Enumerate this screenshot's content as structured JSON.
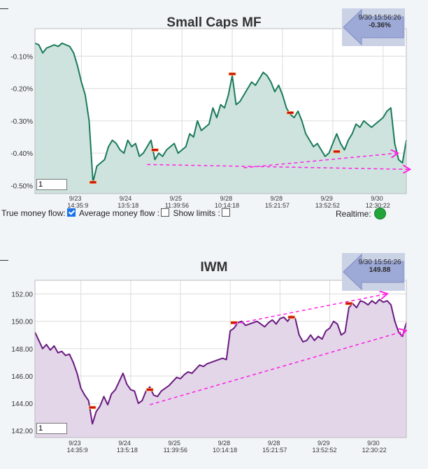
{
  "chart_data": [
    {
      "type": "area",
      "title": "Small Caps MF",
      "ylabel": "",
      "xlabel": "",
      "ylim": [
        -0.525,
        -0.015
      ],
      "yticks": [
        -0.5,
        -0.4,
        -0.3,
        -0.2,
        -0.1
      ],
      "ytick_labels": [
        "-0.50%",
        "-0.40%",
        "-0.30%",
        "-0.20%",
        "-0.10%"
      ],
      "xticks": [
        {
          "i": 12,
          "date": "9/23",
          "time": "14:35:9"
        },
        {
          "i": 25,
          "date": "9/24",
          "time": "13:5:18"
        },
        {
          "i": 38,
          "date": "9/25",
          "time": "11:39:56"
        },
        {
          "i": 51,
          "date": "9/28",
          "time": "10:14:18"
        },
        {
          "i": 64,
          "date": "9/28",
          "time": "15:21:57"
        },
        {
          "i": 77,
          "date": "9/29",
          "time": "13:52:52"
        },
        {
          "i": 90,
          "date": "9/30",
          "time": "12:30:22"
        }
      ],
      "grid": true,
      "fill_color": "#cfe3de",
      "line_color": "#1a7a5a",
      "series": [
        {
          "values": [
            -0.06,
            -0.065,
            -0.09,
            -0.075,
            -0.07,
            -0.065,
            -0.07,
            -0.06,
            -0.065,
            -0.07,
            -0.09,
            -0.13,
            -0.18,
            -0.22,
            -0.3,
            -0.49,
            -0.44,
            -0.43,
            -0.42,
            -0.38,
            -0.36,
            -0.37,
            -0.39,
            -0.4,
            -0.36,
            -0.38,
            -0.37,
            -0.41,
            -0.4,
            -0.38,
            -0.36,
            -0.42,
            -0.4,
            -0.41,
            -0.39,
            -0.38,
            -0.37,
            -0.4,
            -0.39,
            -0.38,
            -0.34,
            -0.35,
            -0.3,
            -0.33,
            -0.32,
            -0.31,
            -0.26,
            -0.29,
            -0.25,
            -0.26,
            -0.22,
            -0.16,
            -0.25,
            -0.24,
            -0.22,
            -0.2,
            -0.18,
            -0.19,
            -0.17,
            -0.15,
            -0.16,
            -0.18,
            -0.21,
            -0.19,
            -0.22,
            -0.26,
            -0.28,
            -0.29,
            -0.27,
            -0.3,
            -0.34,
            -0.36,
            -0.38,
            -0.37,
            -0.39,
            -0.41,
            -0.4,
            -0.37,
            -0.34,
            -0.37,
            -0.39,
            -0.36,
            -0.34,
            -0.31,
            -0.32,
            -0.3,
            -0.31,
            -0.32,
            -0.31,
            -0.3,
            -0.29,
            -0.27,
            -0.26,
            -0.37,
            -0.42,
            -0.43,
            -0.36
          ]
        }
      ],
      "markers": [
        {
          "i": 15,
          "y": -0.49
        },
        {
          "i": 31,
          "y": -0.39
        },
        {
          "i": 51,
          "y": -0.155
        },
        {
          "i": 66,
          "y": -0.275
        },
        {
          "i": 78,
          "y": -0.395
        }
      ],
      "trend_lines": [
        {
          "from": [
            54,
            -0.445
          ],
          "to": [
            93.6,
            -0.4
          ]
        },
        {
          "from": [
            29,
            -0.435
          ],
          "to": [
            96.7,
            -0.45
          ]
        }
      ],
      "tooltip": {
        "datetime": "9/30 15:56:26",
        "value": "-0.36%"
      },
      "range_input": "1"
    },
    {
      "type": "area",
      "title": "IWM",
      "ylabel": "",
      "xlabel": "",
      "ylim": [
        141.5,
        153
      ],
      "yticks": [
        142,
        144,
        146,
        148,
        150,
        152
      ],
      "ytick_labels": [
        "142.00",
        "144.00",
        "146.00",
        "148.00",
        "150.00",
        "152.00"
      ],
      "xticks": [
        {
          "i": 12,
          "date": "9/23",
          "time": "14:35:9"
        },
        {
          "i": 25,
          "date": "9/24",
          "time": "13:5:18"
        },
        {
          "i": 38,
          "date": "9/25",
          "time": "11:39:56"
        },
        {
          "i": 51,
          "date": "9/28",
          "time": "10:14:18"
        },
        {
          "i": 64,
          "date": "9/28",
          "time": "15:21:57"
        },
        {
          "i": 77,
          "date": "9/29",
          "time": "13:52:52"
        },
        {
          "i": 90,
          "date": "9/30",
          "time": "12:30:22"
        }
      ],
      "grid": true,
      "fill_color": "#e2d6e8",
      "line_color": "#6a1a80",
      "series": [
        {
          "values": [
            149.2,
            148.6,
            148.0,
            148.3,
            147.9,
            148.2,
            147.7,
            147.8,
            147.5,
            147.6,
            147.0,
            146.2,
            145.1,
            144.6,
            144.2,
            142.5,
            143.4,
            143.8,
            144.5,
            143.9,
            144.7,
            145.0,
            145.6,
            146.2,
            145.4,
            145.0,
            144.9,
            144.0,
            144.2,
            144.9,
            145.2,
            144.6,
            144.5,
            144.9,
            145.1,
            145.3,
            145.6,
            145.9,
            145.8,
            146.1,
            146.3,
            146.2,
            146.5,
            146.8,
            146.7,
            146.9,
            147.0,
            147.1,
            147.2,
            147.3,
            147.2,
            149.3,
            149.5,
            149.9,
            150.0,
            149.7,
            149.8,
            149.9,
            150.0,
            149.8,
            149.6,
            149.9,
            150.1,
            149.8,
            150.2,
            150.3,
            150.0,
            150.4,
            150.2,
            149.0,
            148.5,
            148.6,
            149.0,
            148.6,
            148.9,
            148.7,
            149.3,
            149.5,
            150.0,
            149.8,
            149.0,
            149.2,
            151.0,
            151.3,
            151.0,
            151.5,
            151.4,
            151.2,
            151.5,
            151.3,
            151.6,
            151.4,
            151.5,
            151.2,
            150.0,
            149.2,
            148.9,
            149.9
          ]
        }
      ],
      "markers": [
        {
          "i": 15,
          "y": 143.7
        },
        {
          "i": 30,
          "y": 145.0
        },
        {
          "i": 52,
          "y": 149.9
        },
        {
          "i": 67,
          "y": 150.3
        },
        {
          "i": 82,
          "y": 151.3
        }
      ],
      "trend_lines": [
        {
          "from": [
            52,
            149.8
          ],
          "to": [
            91.8,
            152.0
          ]
        },
        {
          "from": [
            30,
            143.9
          ],
          "to": [
            96.7,
            149.3
          ]
        }
      ],
      "tooltip": {
        "datetime": "9/30 15:56:26",
        "value": "149.88"
      },
      "range_input": "1"
    }
  ],
  "controls": {
    "true_money_flow": {
      "label": "True money flow:",
      "checked": true
    },
    "average_money_flow": {
      "label": "Average money flow :",
      "checked": false
    },
    "show_limits": {
      "label": "Show limits :",
      "checked": false
    },
    "realtime_label": "Realtime:"
  },
  "colors": {
    "realtime_status": "#21a53a",
    "trend_line": "#ff22e6",
    "marker": "#cc1111"
  }
}
